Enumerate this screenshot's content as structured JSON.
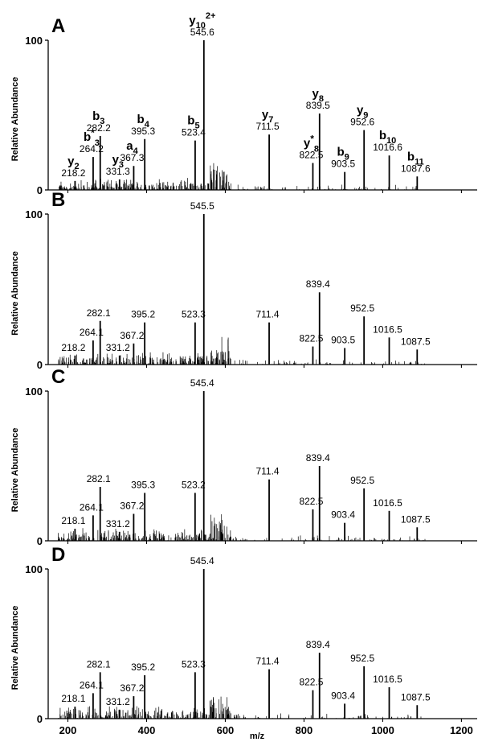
{
  "figure": {
    "xlabel": "m/z",
    "x_ticks": [
      "200",
      "400",
      "600",
      "800",
      "1000",
      "1200"
    ]
  },
  "chart_data": [
    {
      "type": "bar",
      "panel": "A",
      "ylabel": "Relative Abundance",
      "y_tick": "100",
      "y_zero": "0",
      "xlim": [
        150,
        1240
      ],
      "ylim": [
        0,
        100
      ],
      "peaks": [
        {
          "x": 218.2,
          "y": 6,
          "label": "218.2",
          "ion": {
            "main": "y",
            "sub": "2"
          }
        },
        {
          "x": 264.2,
          "y": 22,
          "label": "264.2",
          "ion": {
            "main": "b",
            "sup": "*",
            "sub": "3"
          }
        },
        {
          "x": 282.2,
          "y": 36,
          "label": "282.2",
          "ion": {
            "main": "b",
            "sub": "3"
          }
        },
        {
          "x": 331.3,
          "y": 7,
          "label": "331.3",
          "ion": {
            "main": "y",
            "sub": "3"
          }
        },
        {
          "x": 367.3,
          "y": 16,
          "label": "367.3",
          "ion": {
            "main": "a",
            "sub": "4"
          }
        },
        {
          "x": 395.3,
          "y": 34,
          "label": "395.3",
          "ion": {
            "main": "b",
            "sub": "4"
          }
        },
        {
          "x": 523.4,
          "y": 33,
          "label": "523.4",
          "ion": {
            "main": "b",
            "sub": "5"
          }
        },
        {
          "x": 545.6,
          "y": 100,
          "label": "545.6",
          "ion": {
            "main": "y",
            "sub": "10",
            "sup": "2+"
          }
        },
        {
          "x": 711.5,
          "y": 37,
          "label": "711.5",
          "ion": {
            "main": "y",
            "sub": "7"
          }
        },
        {
          "x": 822.5,
          "y": 18,
          "label": "822.5",
          "ion": {
            "main": "y",
            "sup": "*",
            "sub": "8"
          }
        },
        {
          "x": 839.5,
          "y": 51,
          "label": "839.5",
          "ion": {
            "main": "y",
            "sub": "8"
          }
        },
        {
          "x": 903.5,
          "y": 12,
          "label": "903.5",
          "ion": {
            "main": "b",
            "sub": "9"
          }
        },
        {
          "x": 952.6,
          "y": 40,
          "label": "952.6",
          "ion": {
            "main": "y",
            "sub": "9"
          }
        },
        {
          "x": 1016.6,
          "y": 23,
          "label": "1016.6",
          "ion": {
            "main": "b",
            "sub": "10"
          }
        },
        {
          "x": 1087.6,
          "y": 9,
          "label": "1087.6",
          "ion": {
            "main": "b",
            "sub": "11"
          }
        }
      ]
    },
    {
      "type": "bar",
      "panel": "B",
      "ylabel": "Relative Abundance",
      "y_tick": "100",
      "y_zero": "0",
      "xlim": [
        150,
        1240
      ],
      "ylim": [
        0,
        100
      ],
      "peaks": [
        {
          "x": 218.2,
          "y": 6,
          "label": "218.2"
        },
        {
          "x": 264.1,
          "y": 16,
          "label": "264.1"
        },
        {
          "x": 282.1,
          "y": 29,
          "label": "282.1"
        },
        {
          "x": 331.2,
          "y": 6,
          "label": "331.2"
        },
        {
          "x": 367.2,
          "y": 14,
          "label": "367.2"
        },
        {
          "x": 395.2,
          "y": 28,
          "label": "395.2"
        },
        {
          "x": 523.3,
          "y": 28,
          "label": "523.3"
        },
        {
          "x": 545.5,
          "y": 100,
          "label": "545.5"
        },
        {
          "x": 711.4,
          "y": 28,
          "label": "711.4"
        },
        {
          "x": 822.5,
          "y": 12,
          "label": "822.5"
        },
        {
          "x": 839.4,
          "y": 48,
          "label": "839.4"
        },
        {
          "x": 903.5,
          "y": 11,
          "label": "903.5"
        },
        {
          "x": 952.5,
          "y": 32,
          "label": "952.5"
        },
        {
          "x": 1016.5,
          "y": 18,
          "label": "1016.5"
        },
        {
          "x": 1087.5,
          "y": 10,
          "label": "1087.5"
        }
      ]
    },
    {
      "type": "bar",
      "panel": "C",
      "ylabel": "Relative Abundance",
      "y_tick": "100",
      "y_zero": "0",
      "xlim": [
        150,
        1240
      ],
      "ylim": [
        0,
        100
      ],
      "peaks": [
        {
          "x": 218.1,
          "y": 8,
          "label": "218.1"
        },
        {
          "x": 264.1,
          "y": 17,
          "label": "264.1"
        },
        {
          "x": 282.1,
          "y": 36,
          "label": "282.1"
        },
        {
          "x": 331.2,
          "y": 6,
          "label": "331.2"
        },
        {
          "x": 367.2,
          "y": 18,
          "label": "367.2"
        },
        {
          "x": 395.3,
          "y": 32,
          "label": "395.3"
        },
        {
          "x": 523.2,
          "y": 32,
          "label": "523.2"
        },
        {
          "x": 545.4,
          "y": 100,
          "label": "545.4"
        },
        {
          "x": 711.4,
          "y": 41,
          "label": "711.4"
        },
        {
          "x": 822.5,
          "y": 21,
          "label": "822.5"
        },
        {
          "x": 839.4,
          "y": 50,
          "label": "839.4"
        },
        {
          "x": 903.4,
          "y": 12,
          "label": "903.4"
        },
        {
          "x": 952.5,
          "y": 35,
          "label": "952.5"
        },
        {
          "x": 1016.5,
          "y": 20,
          "label": "1016.5"
        },
        {
          "x": 1087.5,
          "y": 9,
          "label": "1087.5"
        }
      ]
    },
    {
      "type": "bar",
      "panel": "D",
      "ylabel": "Relative Abundance",
      "y_tick": "100",
      "y_zero": "0",
      "xlim": [
        150,
        1240
      ],
      "ylim": [
        0,
        100
      ],
      "peaks": [
        {
          "x": 218.1,
          "y": 8,
          "label": "218.1"
        },
        {
          "x": 264.1,
          "y": 17,
          "label": "264.1"
        },
        {
          "x": 282.1,
          "y": 31,
          "label": "282.1"
        },
        {
          "x": 331.2,
          "y": 6,
          "label": "331.2"
        },
        {
          "x": 367.2,
          "y": 15,
          "label": "367.2"
        },
        {
          "x": 395.2,
          "y": 29,
          "label": "395.2"
        },
        {
          "x": 523.3,
          "y": 31,
          "label": "523.3"
        },
        {
          "x": 545.4,
          "y": 100,
          "label": "545.4"
        },
        {
          "x": 711.4,
          "y": 33,
          "label": "711.4"
        },
        {
          "x": 822.5,
          "y": 19,
          "label": "822.5"
        },
        {
          "x": 839.4,
          "y": 44,
          "label": "839.4"
        },
        {
          "x": 903.4,
          "y": 10,
          "label": "903.4"
        },
        {
          "x": 952.5,
          "y": 35,
          "label": "952.5"
        },
        {
          "x": 1016.5,
          "y": 21,
          "label": "1016.5"
        },
        {
          "x": 1087.5,
          "y": 9,
          "label": "1087.5"
        }
      ]
    }
  ]
}
